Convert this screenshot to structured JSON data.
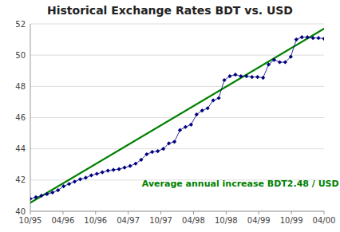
{
  "chart_data": {
    "type": "line",
    "title": "Historical Exchange Rates BDT vs. USD",
    "annotations": [
      {
        "text": "Average annual increase BDT2.48 / USD",
        "color": "#008000"
      }
    ],
    "xlim": [
      0,
      26.5
    ],
    "xticks": [
      {
        "value": 0,
        "label": "10/95"
      },
      {
        "value": 2.9444444444444446,
        "label": "04/96"
      },
      {
        "value": 5.888888888888889,
        "label": "10/96"
      },
      {
        "value": 8.833333333333334,
        "label": "04/97"
      },
      {
        "value": 11.777777777777779,
        "label": "10/97"
      },
      {
        "value": 14.722222222222223,
        "label": "04/98"
      },
      {
        "value": 17.666666666666668,
        "label": "10/98"
      },
      {
        "value": 20.61111111111111,
        "label": "04/99"
      },
      {
        "value": 23.555555555555557,
        "label": "10/99"
      },
      {
        "value": 26.5,
        "label": "04/00"
      }
    ],
    "ylim": [
      40,
      52
    ],
    "yticks": [
      40,
      42,
      44,
      46,
      48,
      50,
      52
    ],
    "grid": true,
    "series": [
      {
        "type": "line",
        "color": "#008000",
        "line_style": "solid",
        "x": [
          0,
          26.5
        ],
        "values": [
          40.55,
          51.7
        ]
      },
      {
        "type": "line",
        "color": "#000080",
        "line_style": "solid",
        "marker": "diamond",
        "x": [
          0,
          0.5,
          1,
          1.5,
          2,
          2.5,
          3,
          3.5,
          4,
          4.5,
          5,
          5.5,
          6,
          6.5,
          7,
          7.5,
          8,
          8.5,
          9,
          9.5,
          10,
          10.5,
          11,
          11.5,
          12,
          12.5,
          13,
          13.5,
          14,
          14.5,
          15,
          15.5,
          16,
          16.5,
          17,
          17.5,
          18,
          18.5,
          19,
          19.5,
          20,
          20.5,
          21,
          21.5,
          22,
          22.5,
          23,
          23.5,
          24,
          24.5,
          25,
          25.5,
          26,
          26.5
        ],
        "values": [
          40.8,
          40.9,
          41.0,
          41.1,
          41.2,
          41.35,
          41.6,
          41.75,
          41.9,
          42.05,
          42.15,
          42.3,
          42.4,
          42.5,
          42.6,
          42.65,
          42.7,
          42.8,
          42.9,
          43.05,
          43.3,
          43.65,
          43.8,
          43.85,
          44.0,
          44.35,
          44.45,
          45.2,
          45.4,
          45.55,
          46.2,
          46.45,
          46.6,
          47.1,
          47.25,
          48.4,
          48.65,
          48.75,
          48.65,
          48.65,
          48.6,
          48.6,
          48.55,
          49.4,
          49.7,
          49.55,
          49.55,
          49.9,
          51.0,
          51.15,
          51.15,
          51.1,
          51.1,
          51.05
        ]
      }
    ]
  }
}
